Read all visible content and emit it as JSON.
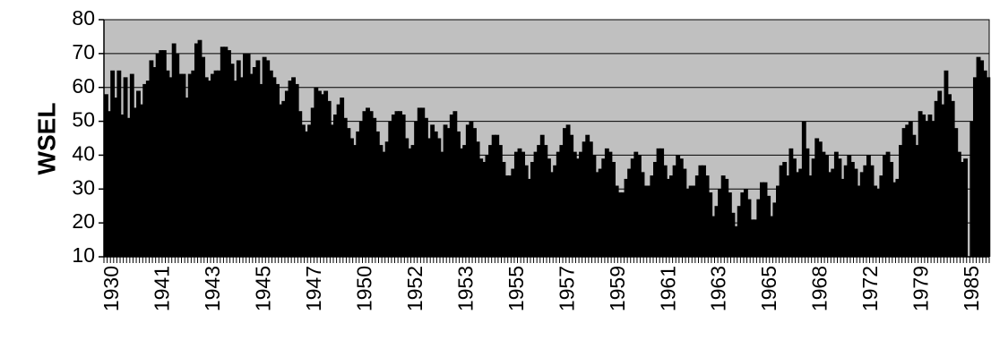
{
  "chart_data": {
    "type": "bar",
    "title": "",
    "xlabel": "",
    "ylabel": "WSEL",
    "ylim": [
      10,
      80
    ],
    "yticks": [
      "10",
      "20",
      "30",
      "40",
      "50",
      "60",
      "70",
      "80"
    ],
    "x_tick_labels": [
      "1930",
      "1941",
      "1943",
      "1945",
      "1947",
      "1950",
      "1952",
      "1953",
      "1955",
      "1957",
      "1959",
      "1961",
      "1963",
      "1965",
      "1968",
      "1972",
      "1979",
      "1985"
    ],
    "grid": true,
    "legend": "none",
    "colors": {
      "plot_bg": "#c0c0c0",
      "bars": "#000000",
      "grid": "#000000"
    },
    "series": [
      {
        "values": [
          58,
          53,
          65,
          57,
          65,
          52,
          63,
          51,
          64,
          54,
          59,
          55,
          61,
          62,
          68,
          66,
          70,
          71,
          71,
          65,
          63,
          73,
          70,
          64,
          64,
          57,
          64,
          65,
          73,
          74,
          69,
          63,
          62,
          64,
          65,
          65,
          72,
          72,
          71,
          67,
          62,
          68,
          63,
          70,
          70,
          64,
          66,
          68,
          61,
          69,
          68,
          65,
          63,
          61,
          55,
          56,
          59,
          62,
          63,
          61,
          53,
          49,
          47,
          49,
          54,
          60,
          59,
          58,
          59,
          56,
          49,
          52,
          55,
          57,
          51,
          48,
          45,
          43,
          47,
          50,
          53,
          54,
          53,
          51,
          47,
          43,
          41,
          44,
          50,
          52,
          53,
          53,
          52,
          45,
          42,
          43,
          50,
          54,
          54,
          51,
          45,
          49,
          47,
          45,
          41,
          49,
          48,
          52,
          53,
          47,
          42,
          43,
          49,
          50,
          48,
          44,
          39,
          38,
          40,
          43,
          46,
          46,
          43,
          38,
          34,
          34,
          36,
          41,
          42,
          41,
          37,
          33,
          38,
          41,
          43,
          46,
          43,
          39,
          35,
          37,
          41,
          43,
          48,
          49,
          46,
          41,
          39,
          41,
          44,
          46,
          44,
          40,
          35,
          36,
          39,
          42,
          41,
          38,
          31,
          29,
          29,
          33,
          36,
          39,
          41,
          40,
          35,
          31,
          31,
          34,
          38,
          42,
          42,
          37,
          33,
          34,
          37,
          40,
          39,
          36,
          30,
          31,
          31,
          34,
          37,
          37,
          34,
          29,
          22,
          25,
          30,
          34,
          33,
          29,
          23,
          19,
          25,
          29,
          30,
          27,
          21,
          21,
          27,
          32,
          32,
          28,
          22,
          26,
          31,
          37,
          38,
          34,
          42,
          39,
          35,
          36,
          50,
          42,
          34,
          39,
          45,
          44,
          41,
          40,
          35,
          36,
          41,
          39,
          33,
          37,
          40,
          38,
          36,
          31,
          35,
          37,
          40,
          37,
          31,
          30,
          34,
          40,
          41,
          38,
          32,
          33,
          43,
          48,
          49,
          50,
          46,
          43,
          53,
          52,
          50,
          52,
          50,
          56,
          59,
          55,
          65,
          58,
          56,
          48,
          41,
          38,
          39,
          10,
          50,
          63,
          69,
          68,
          65,
          63
        ]
      }
    ]
  }
}
